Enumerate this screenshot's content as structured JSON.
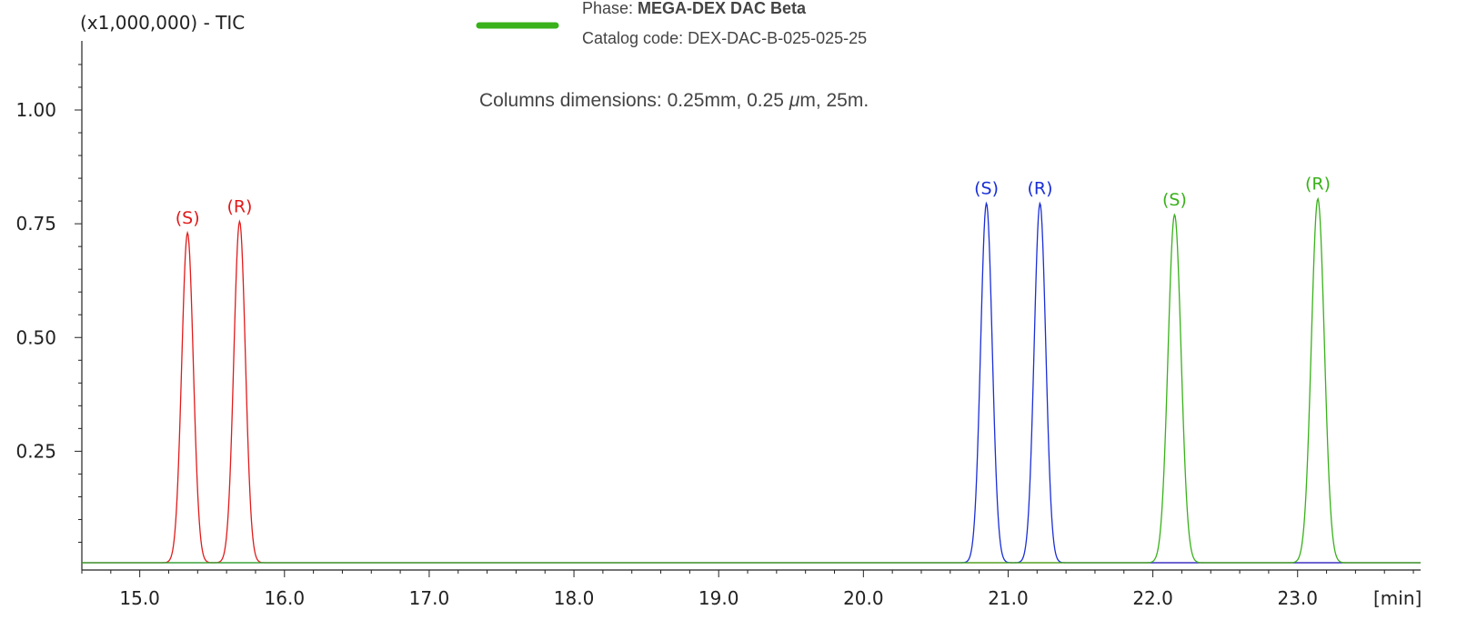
{
  "chart_data": {
    "type": "line",
    "y_unit_label": "(x1,000,000) - TIC",
    "x_unit_label": "[min]",
    "x_range": [
      14.6,
      23.85
    ],
    "y_range": [
      -0.01,
      1.15
    ],
    "x_ticks": [
      15.0,
      16.0,
      17.0,
      18.0,
      19.0,
      20.0,
      21.0,
      22.0,
      23.0
    ],
    "x_tick_labels": [
      "15.0",
      "16.0",
      "17.0",
      "18.0",
      "19.0",
      "20.0",
      "21.0",
      "22.0",
      "23.0"
    ],
    "y_ticks": [
      0.25,
      0.5,
      0.75,
      1.0
    ],
    "y_tick_labels": [
      "0.25",
      "0.50",
      "0.75",
      "1.00"
    ],
    "grid": false,
    "legend": {
      "color": "#39b11b",
      "phase_prefix": "Phase: ",
      "phase_name": "MEGA-DEX DAC Beta",
      "catalog": "Catalog code: DEX-DAC-B-025-025-25"
    },
    "dimensions_prefix": "Columns dimensions: 0.25mm, 0.25 ",
    "dimensions_mu": "μ",
    "dimensions_suffix": "m, 25m.",
    "baseline": 0.005,
    "series": [
      {
        "color": "#e01b1b",
        "peaks": [
          {
            "x": 15.33,
            "y": 0.73,
            "width": 0.04,
            "label": "(S)"
          },
          {
            "x": 15.69,
            "y": 0.755,
            "width": 0.04,
            "label": "(R)"
          }
        ]
      },
      {
        "color": "#1b2fd6",
        "peaks": [
          {
            "x": 20.85,
            "y": 0.795,
            "width": 0.04,
            "label": "(S)"
          },
          {
            "x": 21.22,
            "y": 0.795,
            "width": 0.04,
            "label": "(R)"
          }
        ]
      },
      {
        "color": "#39b11b",
        "peaks": [
          {
            "x": 22.15,
            "y": 0.77,
            "width": 0.045,
            "label": "(S)"
          },
          {
            "x": 23.14,
            "y": 0.805,
            "width": 0.045,
            "label": "(R)"
          }
        ]
      }
    ]
  }
}
